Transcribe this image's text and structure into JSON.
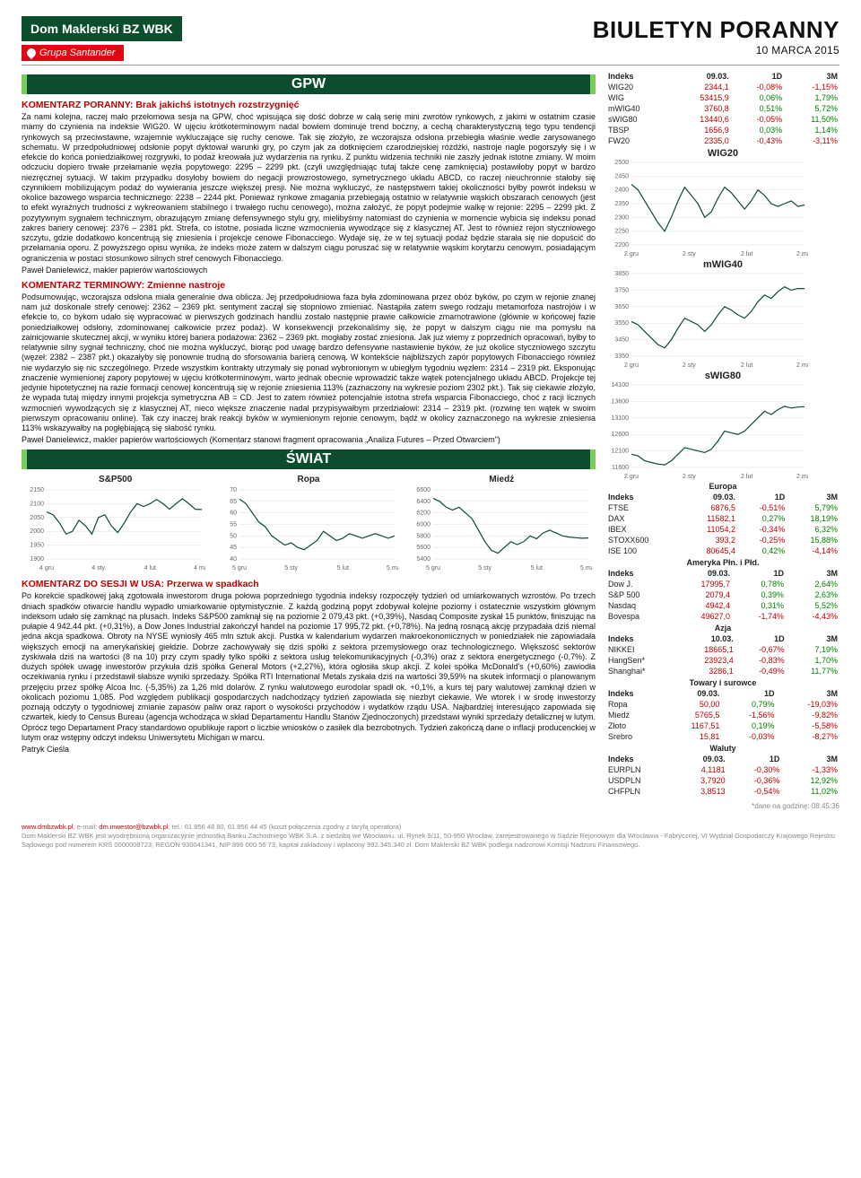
{
  "header": {
    "logo_main": "Dom Maklerski BZ WBK",
    "logo_sub": "Grupa Santander",
    "title": "BIULETYN PORANNY",
    "date": "10 MARCA 2015"
  },
  "sections": {
    "gpw": "GPW",
    "swiat": "ŚWIAT"
  },
  "article1": {
    "heading": "KOMENTARZ PORANNY: Brak jakichś istotnych rozstrzygnięć",
    "body": "Za nami kolejna, raczej mało przełomowa sesja na GPW, choć wpisująca się dość dobrze w całą serię mini zwrotów rynkowych, z jakimi w ostatnim czasie mamy do czynienia na indeksie WIG20. W ujęciu krótkoterminowym nadal bowiem dominuje trend boczny, a cechą charakterystyczną tego typu tendencji rynkowych są przeciwstawne, wzajemnie wykluczające się ruchy cenowe. Tak się złożyło, że wczorajsza odsłona przebiegła właśnie wedle zarysowanego schematu. W przedpołudniowej odsłonie popyt dyktował warunki gry, po czym jak za dotknięciem czarodziejskiej różdżki, nastroje nagle pogorszyły się i w efekcie do końca poniedziałkowej rozgrywki, to podaż kreowała już wydarzenia na rynku. Z punktu widzenia techniki nie zaszły jednak istotne zmiany. W moim odczuciu dopiero trwałe przełamanie węzła popytowego: 2295 – 2299 pkt. (czyli uwzględniając tutaj także cenę zamknięcia) postawiłoby popyt w bardzo niezręcznej sytuacji. W takim przypadku dosyłoby bowiem do negacji prowzrostowego, symetrycznego układu ABCD, co raczej nieuchronnie stałoby się czynnikiem mobilizującym podaż do wywierania jeszcze większej presji. Nie można wykluczyć, że następstwem takiej okoliczności byłby powrót indeksu w okolice bazowego wsparcia technicznego: 2238 – 2244 pkt. Ponieważ rynkowe zmagania przebiegają ostatnio w relatywnie wąskich obszarach cenowych (jest to efekt wyraźnych trudności z wykreowaniem stabilnego i trwałego ruchu cenowego), można założyć, że popyt podejmie walkę w rejonie: 2295 – 2299 pkt. Z pozytywnym sygnałem technicznym, obrazującym zmianę defensywnego stylu gry, mielibyśmy natomiast do czynienia w momencie wybicia się indeksu ponad zakres bariery cenowej: 2376 – 2381 pkt. Strefa, co istotne, posiada liczne wzmocnienia wywodzące się z klasycznej AT. Jest to również rejon styczniowego szczytu, gdzie dodatkowo koncentrują się zniesienia i projekcje cenowe Fibonacciego. Wydaje się, że w tej sytuacji podaż będzie starała się nie dopuścić do przełamania oporu. Z powyższego opisu wynika, że indeks może zatem w dalszym ciągu poruszać się w relatywnie wąskim korytarzu cenowym, posiadającym ograniczenia w postaci stosunkowo silnych stref cenowych Fibonacciego.",
    "sig": "Paweł Danielewicz, makler papierów wartościowych"
  },
  "article2": {
    "heading": "KOMENTARZ TERMINOWY: Zmienne nastroje",
    "body": "Podsumowując, wczorajsza odsłona miała generalnie dwa oblicza. Jej przedpołudniowa faza była zdominowana przez obóz byków, po czym w rejonie znanej nam już doskonale strefy cenowej: 2362 – 2369 pkt. sentyment zaczął się stopniowo zmieniać. Nastąpiła zatem swego rodzaju metamorfoza nastrojów i w efekcie to, co bykom udało się wypracować w pierwszych godzinach handlu zostało następnie prawie całkowicie zmarnotrawione (głównie w końcowej fazie poniedziałkowej odsłony, zdominowanej całkowicie przez podaż). W konsekwencji przekonaliśmy się, że popyt w dalszym ciągu nie ma pomysłu na zainicjowanie skutecznej akcji, w wyniku której bariera podażowa: 2362 – 2369 pkt. mogłaby zostać zniesiona. Jak już wiemy z poprzednich opracowań, byłby to relatywnie silny sygnał techniczny, choć nie można wykluczyć, biorąc pod uwagę bardzo defensywne nastawienie byków, że już okolice styczniowego szczytu (węzeł: 2382 – 2387 pkt.) okazałyby się ponownie trudną do sforsowania barierą cenową. W kontekście najbliższych zapór popytowych Fibonacciego również nie wydarzyło się nic szczególnego. Przede wszystkim kontrakty utrzymały się ponad wybronionym w ubiegłym tygodniu węzłem: 2314 – 2319 pkt. Eksponując znaczenie wymienionej zapory popytowej w ujęciu krótkoterminowym, warto jednak obecnie wprowadzić także wątek potencjalnego układu ABCD. Projekcje tej jedynie hipotetycznej na razie formacji cenowej koncentrują się w rejonie zniesienia 113% (zaznaczony na wykresie poziom 2302 pkt.). Tak się ciekawie złożyło, że wypada tutaj między innymi projekcja symetryczna AB = CD. Jest to zatem również potencjalnie istotna strefa wsparcia Fibonacciego, choć z racji licznych wzmocnień wywodzących się z klasycznej AT, nieco większe znaczenie nadal przypisywałbym przedziałowi: 2314 – 2319 pkt. (rozwinę ten wątek w swoim pierwszym opracowaniu online). Tak czy inaczej brak reakcji byków w wymienionym rejonie cenowym, bądź w okolicy zaznaczonego na wykresie zniesienia 113% wskazywałby na pogłębiającą się słabość rynku.",
    "sig": "Paweł Danielewicz, makler papierów wartościowych (Komentarz stanowi fragment opracowania „Analiza Futures – Przed Otwarciem\")"
  },
  "article3": {
    "heading": "KOMENTARZ DO SESJI W USA: Przerwa w spadkach",
    "body": "Po korekcie spadkowej jaką zgotowała inwestorom druga połowa poprzedniego tygodnia indeksy rozpoczęły tydzień od umiarkowanych wzrostów. Po trzech dniach spadków otwarcie handlu wypadło umiarkowanie optymistycznie. Z każdą godziną popyt zdobywał kolejne poziomy i ostatecznie wszystkim głównym indeksom udało się zamknąć na plusach. Indeks S&P500 zamknął się na poziomie 2 079,43 pkt. (+0,39%), Nasdaq Composite zyskał 15 punktów, finiszując na pułapie 4 942,44 pkt. (+0,31%), a Dow Jones Industrial zakończył handel na poziomie 17 995,72 pkt. (+0,78%). Na jedną rosnącą akcję przypadała dziś niemal jedna akcja spadkowa. Obroty na NYSE wyniosły 465 mln sztuk akcji. Pustka w kalendarium wydarzeń makroekonomicznych w poniedziałek nie zapowiadała większych emocji na amerykańskiej giełdzie. Dobrze zachowywały się dziś spółki z sektora przemysłowego oraz technologicznego. Większość sektorów zyskiwała dziś na wartości (8 na 10) przy czym spadły tylko spółki z sektora usług telekomunikacyjnych (-0,3%) oraz z sektora energetycznego (-0,7%). Z dużych spółek uwagę inwestorów przykuła dziś spółka General Motors (+2,27%), która ogłosiła skup akcji. Z kolei spółka McDonald's (+0,60%) zawiodła oczekiwania rynku i przedstawił słabsze wyniki sprzedaży. Spółka RTI International Metals zyskała dziś na wartości 39,59% na skutek informacji o planowanym przejęciu przez spółkę Alcoa Inc. (-5,35%) za 1,26 mld dolarów. Z rynku walutowego eurodolar spadł ok. +0,1%, a kurs tej pary walutowej zamknął dzień w okolicach poziomu 1,085. Pod względem publikacji gospodarczych nadchodzący tydzień zapowiada się niezbyt ciekawie. We wtorek i w środę inwestorzy poznają odczyty o tygodniowej zmianie zapasów paliw oraz raport o wysokości przychodów i wydatków rządu USA. Najbardziej interesująco zapowiada się czwartek, kiedy to Census Bureau (agencja wchodząca w skład Departamentu Handlu Stanów Zjednoczonych) przedstawi wyniki sprzedaży detalicznej w lutym. Oprócz tego Departament Pracy standardowo opublikuje raport o liczbie wniosków o zasiłek dla bezrobotnych. Tydzień zakończą dane o inflacji producenckiej w lutym oraz wstępny odczyt indeksu Uniwersytetu Michigan w marcu.",
    "sig": "Patryk Cieśla"
  },
  "idx_table": {
    "head": [
      "Indeks",
      "09.03.",
      "1D",
      "3M"
    ],
    "rows": [
      [
        "WIG20",
        "2344,1",
        "-0,08%",
        "-1,15%"
      ],
      [
        "WIG",
        "53415,9",
        "0,06%",
        "1,79%"
      ],
      [
        "mWIG40",
        "3760,8",
        "0,51%",
        "5,72%"
      ],
      [
        "sWIG80",
        "13440,6",
        "-0,05%",
        "11,50%"
      ],
      [
        "TBSP",
        "1656,9",
        "0,03%",
        "1,14%"
      ],
      [
        "FW20",
        "2335,0",
        "-0,43%",
        "-3,11%"
      ]
    ]
  },
  "right_charts": [
    {
      "title": "WIG20",
      "ymin": 2200,
      "ymax": 2500,
      "ystep": 50,
      "xticks": [
        "2 gru",
        "2 sty",
        "2 lut",
        "2 mar"
      ],
      "values": [
        2420,
        2400,
        2360,
        2320,
        2280,
        2250,
        2300,
        2360,
        2410,
        2380,
        2350,
        2300,
        2320,
        2370,
        2410,
        2390,
        2360,
        2330,
        2360,
        2400,
        2380,
        2350,
        2340,
        2350,
        2360,
        2340,
        2345
      ]
    },
    {
      "title": "mWIG40",
      "ymin": 3350,
      "ymax": 3850,
      "ystep": 100,
      "xticks": [
        "2 gru",
        "2 sty",
        "2 lut",
        "2 mar"
      ],
      "values": [
        3560,
        3540,
        3500,
        3460,
        3420,
        3400,
        3450,
        3520,
        3580,
        3560,
        3540,
        3500,
        3540,
        3600,
        3650,
        3630,
        3600,
        3580,
        3620,
        3680,
        3720,
        3700,
        3740,
        3770,
        3750,
        3760,
        3760
      ]
    },
    {
      "title": "sWIG80",
      "ymin": 11600,
      "ymax": 14100,
      "ystep": 500,
      "xticks": [
        "2 gru",
        "2 sty",
        "2 lut",
        "2 mar"
      ],
      "values": [
        12000,
        11950,
        11800,
        11750,
        11700,
        11680,
        11800,
        12000,
        12200,
        12150,
        12100,
        12050,
        12150,
        12400,
        12700,
        12650,
        12600,
        12700,
        12900,
        13100,
        13300,
        13200,
        13350,
        13450,
        13400,
        13430,
        13440
      ]
    }
  ],
  "world_charts": [
    {
      "title": "S&P500",
      "ymin": 1900,
      "ymax": 2150,
      "ystep": 50,
      "xticks": [
        "4 gru",
        "4 sty",
        "4 lut",
        "4 mar"
      ],
      "values": [
        2070,
        2060,
        2030,
        1990,
        2000,
        2040,
        2020,
        1990,
        2050,
        2060,
        2020,
        1995,
        2030,
        2070,
        2100,
        2090,
        2100,
        2115,
        2100,
        2080,
        2100,
        2118,
        2100,
        2080,
        2079
      ]
    },
    {
      "title": "Ropa",
      "ymin": 40,
      "ymax": 70,
      "ystep": 5,
      "xticks": [
        "5 gru",
        "5 sty",
        "5 lut",
        "5 mar"
      ],
      "values": [
        66,
        64,
        60,
        56,
        54,
        50,
        48,
        46,
        47,
        45,
        44,
        46,
        48,
        52,
        50,
        48,
        49,
        51,
        50,
        49,
        50,
        51,
        50,
        49,
        50
      ]
    },
    {
      "title": "Miedź",
      "ymin": 5400,
      "ymax": 6600,
      "ystep": 200,
      "xticks": [
        "5 gru",
        "5 sty",
        "5 lut",
        "5 mar"
      ],
      "values": [
        6450,
        6400,
        6300,
        6250,
        6300,
        6200,
        6100,
        5900,
        5700,
        5550,
        5500,
        5600,
        5700,
        5650,
        5700,
        5800,
        5750,
        5850,
        5900,
        5850,
        5800,
        5780,
        5770,
        5760,
        5765
      ]
    }
  ],
  "world_tables": [
    {
      "region": "Europa",
      "head": [
        "Indeks",
        "09.03.",
        "1D",
        "3M"
      ],
      "rows": [
        [
          "FTSE",
          "6876,5",
          "-0,51%",
          "5,79%"
        ],
        [
          "DAX",
          "11582,1",
          "0,27%",
          "18,19%"
        ],
        [
          "IBEX",
          "11054,2",
          "-0,34%",
          "6,32%"
        ],
        [
          "STOXX600",
          "393,2",
          "-0,25%",
          "15,88%"
        ],
        [
          "ISE 100",
          "80645,4",
          "0,42%",
          "-4,14%"
        ]
      ]
    },
    {
      "region": "Ameryka Płn. i Płd.",
      "head": [
        "Indeks",
        "09.03.",
        "1D",
        "3M"
      ],
      "rows": [
        [
          "Dow J.",
          "17995,7",
          "0,78%",
          "2,64%"
        ],
        [
          "S&P 500",
          "2079,4",
          "0,39%",
          "2,63%"
        ],
        [
          "Nasdaq",
          "4942,4",
          "0,31%",
          "5,52%"
        ],
        [
          "Bovespa",
          "49627,0",
          "-1,74%",
          "-4,43%"
        ]
      ]
    },
    {
      "region": "Azja",
      "head": [
        "Indeks",
        "10.03.",
        "1D",
        "3M"
      ],
      "rows": [
        [
          "NIKKEI",
          "18665,1",
          "-0,67%",
          "7,19%"
        ],
        [
          "HangSen*",
          "23923,4",
          "-0,83%",
          "1,70%"
        ],
        [
          "Shanghai*",
          "3286,1",
          "-0,49%",
          "11,77%"
        ]
      ]
    },
    {
      "region": "Towary i surowce",
      "head": [
        "Indeks",
        "09.03.",
        "1D",
        "3M"
      ],
      "rows": [
        [
          "Ropa",
          "50,00",
          "0,79%",
          "-19,03%"
        ],
        [
          "Miedź",
          "5765,5",
          "-1,56%",
          "-9,82%"
        ],
        [
          "Złoto",
          "1167,51",
          "0,19%",
          "-5,58%"
        ],
        [
          "Srebro",
          "15,81",
          "-0,03%",
          "-8,27%"
        ]
      ]
    },
    {
      "region": "Waluty",
      "head": [
        "Indeks",
        "09.03.",
        "1D",
        "3M"
      ],
      "rows": [
        [
          "EURPLN",
          "4,1181",
          "-0,30%",
          "-1,33%"
        ],
        [
          "USDPLN",
          "3,7920",
          "-0,36%",
          "12,92%"
        ],
        [
          "CHFPLN",
          "3,8513",
          "-0,54%",
          "11,02%"
        ]
      ]
    }
  ],
  "footnote": "*dane na godzinę:    08:45:36",
  "footer": {
    "l1_a": "www.dmbzwbk.pl",
    "l1_b": ", e-mail: ",
    "l1_c": "dm.inwestor@bzwbk.pl",
    "l1_d": ", tel.: 61 856 48 80, 61 856 44 45 (koszt połączenia zgodny z taryfą operatora)",
    "l2": "Dom Maklerski BZ WBK jest wyodrębnioną organizacyjnie jednostką Banku Zachodniego WBK S.A. z siedzibą we Wrocławiu, ul. Rynek 9/11, 50-950 Wrocław, zarejestrowanego w Sądzie Rejonowym dla Wrocławia - Fabrycznej, VI Wydział Gospodarczy Krajowego Rejestru Sądowego pod numerem KRS 0000008723, REGON 930041341, NIP 896 000 56 73, kapitał zakładowy i wpłacony 992.345.340 zł. Dom Maklerski BZ WBK podlega nadzorowi Komisji Nadzoru Finansowego."
  },
  "chart_style": {
    "line_color": "#0b4d2c",
    "grid_color": "#dddddd",
    "axis_color": "#555555",
    "tick_font": 7
  }
}
